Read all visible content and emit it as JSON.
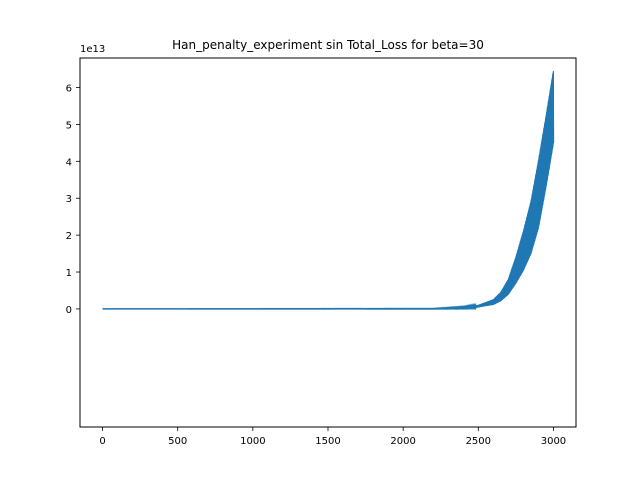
{
  "chart_data": {
    "type": "line",
    "title": "Han_penalty_experiment sin Total_Loss for beta=30",
    "xlabel": "",
    "ylabel": "",
    "y_offset_label": "1e13",
    "xlim": [
      -150,
      3150
    ],
    "ylim": [
      -3.2,
      6.8
    ],
    "x_ticks": [
      0,
      500,
      1000,
      1500,
      2000,
      2500,
      3000
    ],
    "x_tick_labels": [
      "0",
      "500",
      "1000",
      "1500",
      "2000",
      "2500",
      "3000"
    ],
    "y_ticks": [
      0,
      1,
      2,
      3,
      4,
      5,
      6
    ],
    "y_tick_labels": [
      "0",
      "1",
      "2",
      "3",
      "4",
      "5",
      "6"
    ],
    "grid": false,
    "line_color": "#1f77b4",
    "series": [
      {
        "name": "",
        "envelope_upper": {
          "x": [
            0,
            2200,
            2400,
            2500,
            2600,
            2650,
            2700,
            2750,
            2800,
            2850,
            2900,
            2950,
            3000
          ],
          "y": [
            0.0,
            0.01,
            0.05,
            0.1,
            0.25,
            0.45,
            0.8,
            1.4,
            2.1,
            2.9,
            4.0,
            5.2,
            6.45
          ]
        },
        "envelope_lower": {
          "x": [
            0,
            2200,
            2400,
            2500,
            2600,
            2650,
            2700,
            2750,
            2800,
            2850,
            2900,
            2950,
            3000
          ],
          "y": [
            0.0,
            0.0,
            0.02,
            0.05,
            0.12,
            0.22,
            0.4,
            0.7,
            1.05,
            1.5,
            2.2,
            3.3,
            4.5
          ]
        }
      }
    ]
  }
}
